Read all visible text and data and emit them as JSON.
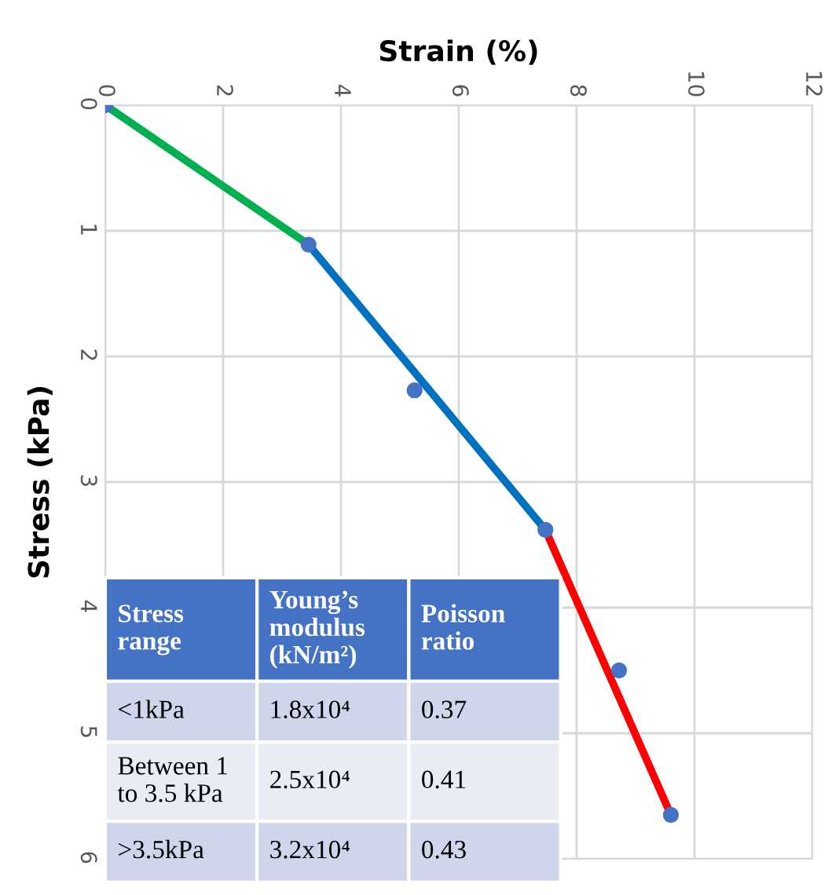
{
  "chart_data": {
    "type": "scatter",
    "xlabel": "Strain (%)",
    "ylabel": "Stress (kPa)",
    "xlim": [
      0,
      12
    ],
    "xticks": [
      0,
      2,
      4,
      6,
      8,
      10,
      12
    ],
    "ylim": [
      6,
      0
    ],
    "yticks": [
      0,
      1,
      2,
      3,
      4,
      5,
      6
    ],
    "grid": true,
    "marker": "circle",
    "series": [
      {
        "type": "line",
        "color": "#00b050",
        "x": [
          0,
          3.45
        ],
        "values": [
          0,
          1.11
        ],
        "marker": "none"
      },
      {
        "type": "line",
        "color": "#0070c0",
        "x": [
          3.45,
          7.47
        ],
        "values": [
          1.11,
          3.38
        ],
        "marker": "none"
      },
      {
        "type": "line",
        "color": "#ff0000",
        "x": [
          7.47,
          9.6
        ],
        "values": [
          3.38,
          5.65
        ],
        "marker": "none"
      },
      {
        "color": "#4472c4",
        "x": [
          0,
          3.45,
          5.25,
          7.47,
          8.72,
          9.6
        ],
        "values": [
          0,
          1.11,
          2.27,
          3.38,
          4.5,
          5.65
        ]
      }
    ],
    "annotations": [
      "Stress\nrange",
      "Young’s\nmodulus\n(kN/m²)",
      "Poisson\nratio",
      "<1kPa",
      "1.8x10⁴",
      "0.37",
      "Between 1\nto 3.5 kPa",
      "2.5x10⁴",
      "0.41",
      ">3.5kPa",
      "3.2x10⁴",
      "0.43"
    ]
  }
}
